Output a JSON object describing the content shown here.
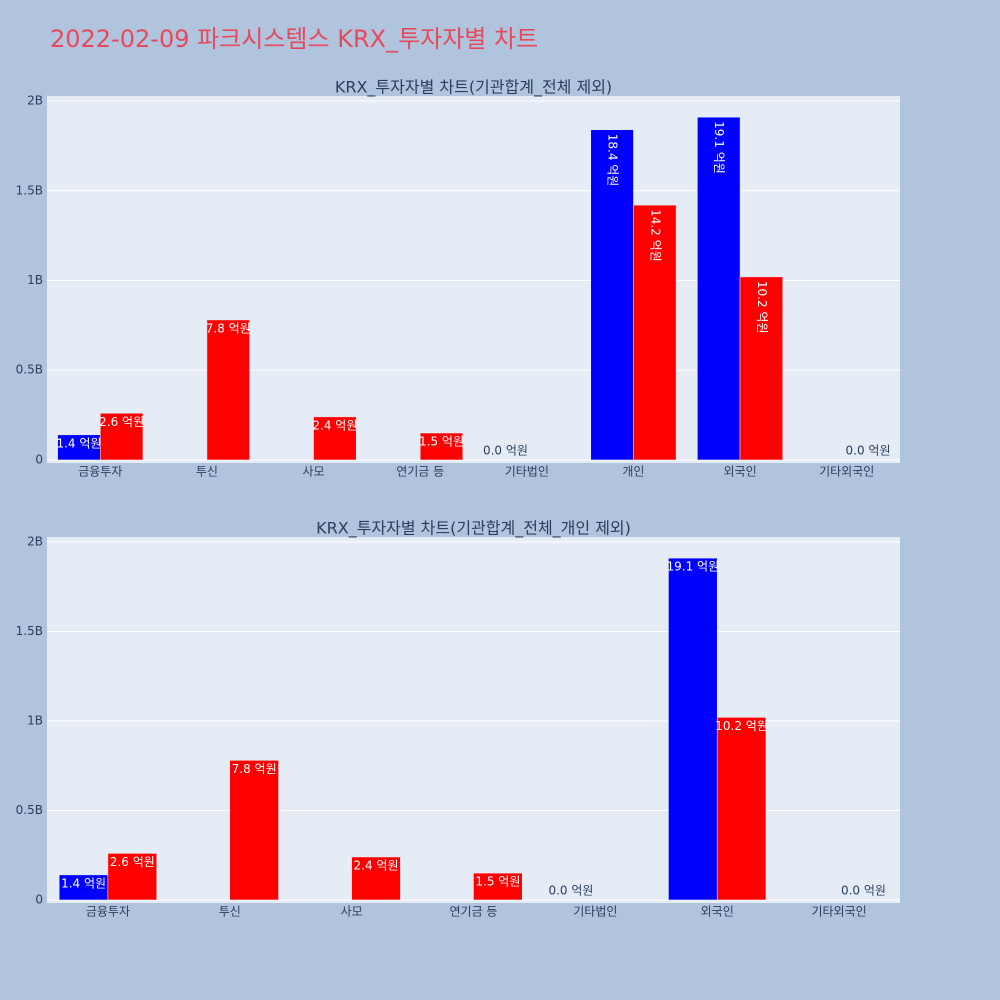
{
  "title": "2022-02-09 파크시스템스 KRX_투자자별 차트",
  "chart_data": [
    {
      "type": "bar",
      "title": "KRX_투자자별 차트(기관합계_전체 제외)",
      "categories": [
        "금융투자",
        "투신",
        "사모",
        "연기금 등",
        "기타법인",
        "개인",
        "외국인",
        "기타외국인"
      ],
      "series": [
        {
          "color": "#0000ff",
          "values": [
            140000000,
            null,
            null,
            null,
            0,
            1840000000,
            1910000000,
            null
          ],
          "value_labels": [
            "1.4 억원",
            null,
            null,
            null,
            "0.0 억원",
            "18.4 억원",
            "19.1 억원",
            null
          ]
        },
        {
          "color": "#ff0000",
          "values": [
            260000000,
            780000000,
            240000000,
            150000000,
            null,
            1420000000,
            1020000000,
            0
          ],
          "value_labels": [
            "2.6 억원",
            "7.8 억원",
            "2.4 억원",
            "1.5 억원",
            null,
            "14.2 억원",
            "10.2 억원",
            "0.0 억원"
          ]
        }
      ],
      "ylim": [
        -17000000,
        2028000000
      ],
      "yticks": [
        0,
        {
          "value": 500000000,
          "label": "0.5B"
        },
        {
          "value": 1000000000,
          "label": "1B"
        },
        {
          "value": 1500000000,
          "label": "1.5B"
        },
        {
          "value": 2000000000,
          "label": "2B"
        }
      ],
      "grid": true
    },
    {
      "type": "bar",
      "title": "KRX_투자자별 차트(기관합계_전체_개인 제외)",
      "categories": [
        "금융투자",
        "투신",
        "사모",
        "연기금 등",
        "기타법인",
        "외국인",
        "기타외국인"
      ],
      "series": [
        {
          "color": "#0000ff",
          "values": [
            140000000,
            null,
            null,
            null,
            0,
            1910000000,
            null
          ],
          "value_labels": [
            "1.4 억원",
            null,
            null,
            null,
            "0.0 억원",
            "19.1 억원",
            null
          ]
        },
        {
          "color": "#ff0000",
          "values": [
            260000000,
            780000000,
            240000000,
            150000000,
            null,
            1020000000,
            0
          ],
          "value_labels": [
            "2.6 억원",
            "7.8 억원",
            "2.4 억원",
            "1.5 억원",
            null,
            "10.2 억원",
            "0.0 억원"
          ]
        }
      ],
      "ylim": [
        -17000000,
        2028000000
      ],
      "yticks": [
        0,
        {
          "value": 500000000,
          "label": "0.5B"
        },
        {
          "value": 1000000000,
          "label": "1B"
        },
        {
          "value": 1500000000,
          "label": "1.5B"
        },
        {
          "value": 2000000000,
          "label": "2B"
        }
      ],
      "grid": true
    }
  ]
}
